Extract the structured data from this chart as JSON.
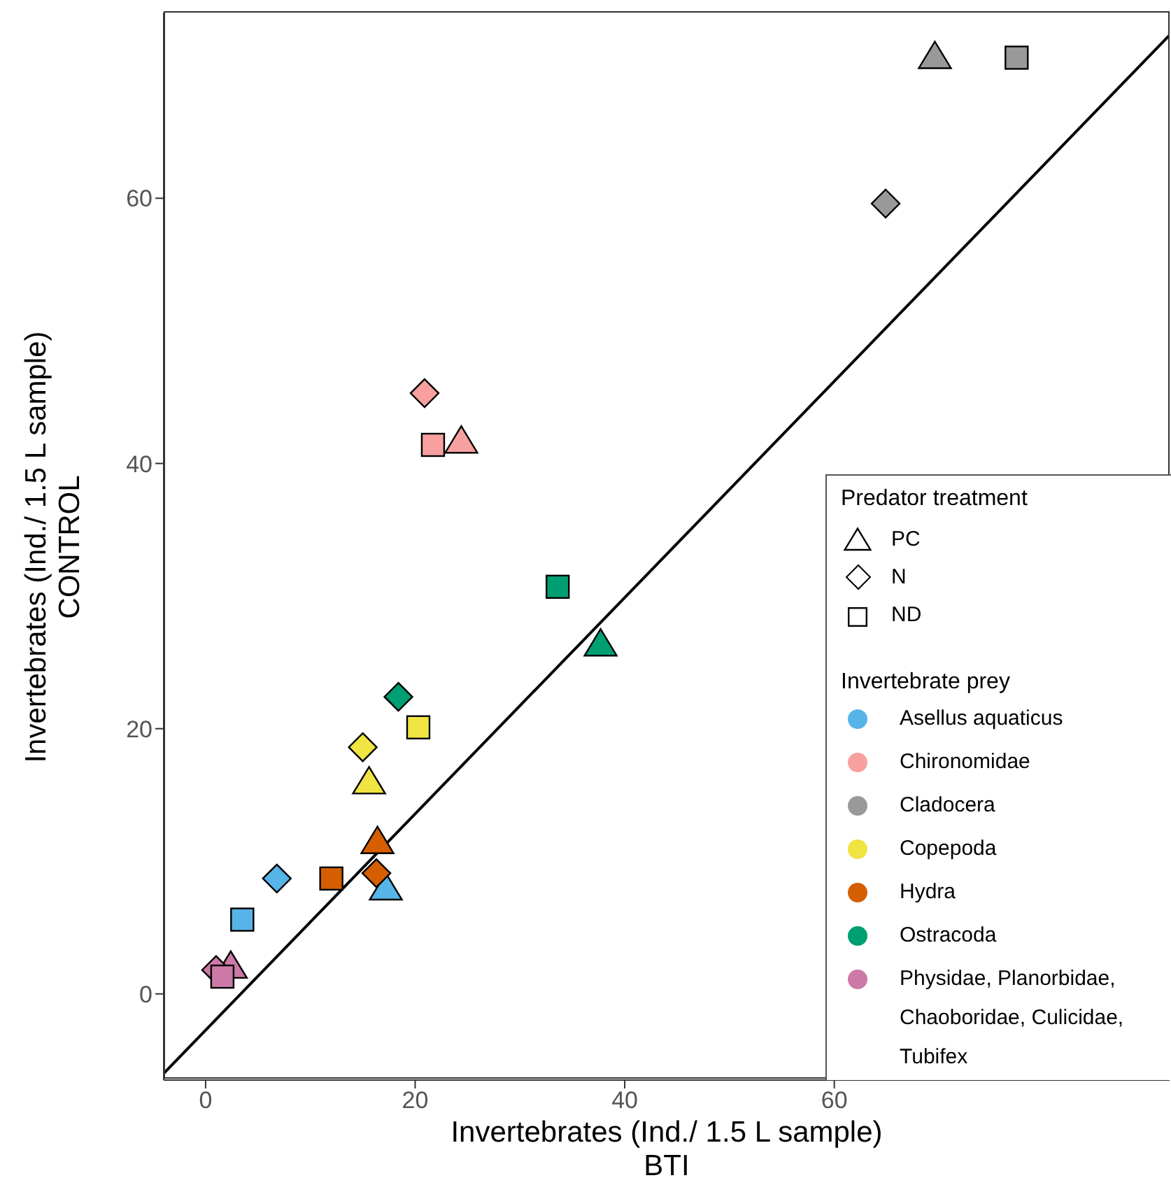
{
  "chart_data": {
    "type": "scatter",
    "xlabel": "Invertebrates (Ind./ 1.5 L sample)\nBTI",
    "ylabel": "Invertebrates (Ind./ 1.5 L sample)\nCONTROL",
    "legend_title": [
      "Predator treatment",
      "Invertebrate prey"
    ],
    "annotations": [
      "PC",
      "N",
      "ND"
    ],
    "marker": [
      "triangle",
      "diamond",
      "square"
    ],
    "xlim": [
      -4,
      92
    ],
    "xticks": [
      0,
      20,
      40,
      60
    ],
    "ylim": [
      -6.5,
      74
    ],
    "yticks": [
      0,
      20,
      40,
      60
    ],
    "grid": false,
    "legend": "bottom right",
    "series": [
      {
        "name": "Asellus aquaticus",
        "color": "#56b4e9",
        "x": [
          17.2,
          6.8,
          3.5
        ],
        "values": [
          7.9,
          8.7,
          5.6
        ]
      },
      {
        "name": "Chironomidae",
        "color": "#f8a0a0",
        "x": [
          24.4,
          20.9,
          21.7
        ],
        "values": [
          41.6,
          45.3,
          41.4
        ]
      },
      {
        "name": "Cladocera",
        "color": "#999999",
        "x": [
          69.6,
          64.9,
          77.4
        ],
        "values": [
          70.6,
          59.6,
          70.6
        ]
      },
      {
        "name": "Copepoda",
        "color": "#f0e442",
        "x": [
          15.6,
          15.0,
          20.3
        ],
        "values": [
          15.9,
          18.6,
          20.1
        ]
      },
      {
        "name": "Hydra",
        "color": "#d55e00",
        "x": [
          16.4,
          16.3,
          12.0
        ],
        "values": [
          11.4,
          9.1,
          8.7
        ]
      },
      {
        "name": "Ostracoda",
        "color": "#009e73",
        "x": [
          37.7,
          18.4,
          33.6
        ],
        "values": [
          26.3,
          22.4,
          30.7
        ]
      },
      {
        "name": "Physidae, Planorbidae, Chaoboridae, Culicidae, Tubifex",
        "color": "#cc79a7",
        "x": [
          2.4,
          1.0,
          1.6
        ],
        "values": [
          2.0,
          1.8,
          1.3
        ]
      },
      {
        "type": "line",
        "color": "#000000",
        "x": [
          -4,
          92
        ],
        "values": [
          -6,
          72.3
        ]
      }
    ]
  }
}
